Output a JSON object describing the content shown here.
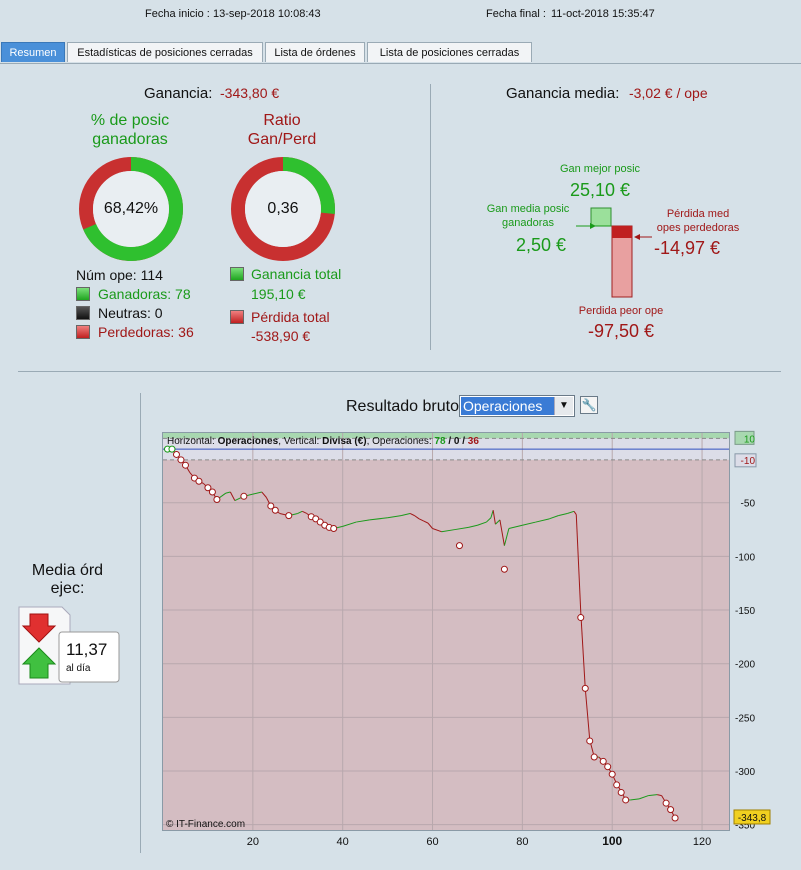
{
  "header": {
    "start_label": "Fecha inicio :",
    "start_value": "13-sep-2018 10:08:43",
    "end_label": "Fecha final :",
    "end_value": "11-oct-2018 15:35:47"
  },
  "tabs": [
    "Resumen",
    "Estadísticas de posiciones cerradas",
    "Lista de órdenes",
    "Lista de posiciones cerradas"
  ],
  "summary": {
    "gain_label": "Ganancia:",
    "gain_value": "-343,80 €",
    "win_pct_title_1": "% de posic",
    "win_pct_title_2": "ganadoras",
    "win_pct_value": "68,42%",
    "win_fraction": 0.6842,
    "ratio_title_1": "Ratio",
    "ratio_title_2": "Gan/Perd",
    "ratio_value": "0,36",
    "ratio_fraction": 0.265,
    "num_ope": "Núm ope: 114",
    "winners": "Ganadoras: 78",
    "neutral": "Neutras: 0",
    "losers": "Perdedoras: 36",
    "total_gain_label": "Ganancia total",
    "total_gain_value": "195,10 €",
    "total_loss_label": "Pérdida total",
    "total_loss_value": "-538,90 €"
  },
  "avg": {
    "label": "Ganancia media:",
    "value": "-3,02 € / ope",
    "best_label": "Gan mejor posic",
    "best_value": "25,10 €",
    "avg_win_label_1": "Gan media posic",
    "avg_win_label_2": "ganadoras",
    "avg_win_value": "2,50 €",
    "avg_loss_label_1": "Pérdida med",
    "avg_loss_label_2": "opes perdedoras",
    "avg_loss_value": "-14,97 €",
    "worst_label": "Perdida peor ope",
    "worst_value": "-97,50 €"
  },
  "orders": {
    "label_1": "Media órd",
    "label_2": "ejec:",
    "value": "11,37",
    "unit": "al día"
  },
  "chart_controls": {
    "title": "Resultado bruto",
    "select_value": "Operaciones"
  },
  "chart_header": {
    "horizontal_label": "Horizontal:",
    "horizontal_value": "Operaciones",
    "vertical_label": ", Vertical:",
    "vertical_value": "Divisa (€)",
    "ops_label": ", Operaciones:",
    "ops_win": "78",
    "ops_sep1": "/",
    "ops_neutral": "0",
    "ops_sep2": "/",
    "ops_loss": "36"
  },
  "chart_data": {
    "type": "line",
    "title": "Resultado bruto",
    "xlabel": "",
    "ylabel": "",
    "xlim": [
      0,
      126
    ],
    "ylim": [
      -355,
      15
    ],
    "x_ticks": [
      "20",
      "40",
      "60",
      "80",
      "100",
      "120"
    ],
    "x_tick_values": [
      20,
      40,
      60,
      80,
      100,
      120
    ],
    "y_ticks": [
      "10",
      "-10",
      "-50",
      "-100",
      "-150",
      "-200",
      "-250",
      "-300",
      "-350"
    ],
    "y_tick_values": [
      10,
      -10,
      -50,
      -100,
      -150,
      -200,
      -250,
      -300,
      -350
    ],
    "grid": true,
    "final_value": "-343,8",
    "copyright": "© IT-Finance.com",
    "series": [
      {
        "values": [
          [
            1,
            0
          ],
          [
            2,
            0
          ],
          [
            3,
            -5
          ],
          [
            4,
            -10
          ],
          [
            5,
            -15
          ],
          [
            6,
            -22
          ],
          [
            7,
            -27
          ],
          [
            8,
            -30
          ],
          [
            9,
            -32
          ],
          [
            10,
            -36
          ],
          [
            11,
            -40
          ],
          [
            12,
            -47
          ],
          [
            13,
            -44
          ],
          [
            14,
            -41
          ],
          [
            15,
            -40
          ],
          [
            16,
            -48
          ],
          [
            18,
            -44
          ],
          [
            20,
            -42
          ],
          [
            22,
            -40
          ],
          [
            23,
            -45
          ],
          [
            24,
            -53
          ],
          [
            25,
            -57
          ],
          [
            26,
            -60
          ],
          [
            28,
            -62
          ],
          [
            30,
            -60
          ],
          [
            31,
            -58
          ],
          [
            32,
            -60
          ],
          [
            33,
            -63
          ],
          [
            34,
            -65
          ],
          [
            35,
            -68
          ],
          [
            36,
            -71
          ],
          [
            37,
            -73
          ],
          [
            38,
            -74
          ],
          [
            40,
            -72
          ],
          [
            43,
            -68
          ],
          [
            46,
            -66
          ],
          [
            50,
            -64
          ],
          [
            53,
            -62
          ],
          [
            55,
            -60
          ],
          [
            56,
            -62
          ],
          [
            57,
            -65
          ],
          [
            58,
            -67
          ],
          [
            59,
            -69
          ],
          [
            60,
            -74
          ],
          [
            62,
            -77
          ],
          [
            65,
            -75
          ],
          [
            68,
            -73
          ],
          [
            70,
            -71
          ],
          [
            72,
            -68
          ],
          [
            73,
            -64
          ],
          [
            73.5,
            -57
          ],
          [
            74,
            -70
          ],
          [
            75,
            -66
          ],
          [
            76,
            -90
          ],
          [
            77,
            -74
          ],
          [
            80,
            -71
          ],
          [
            83,
            -68
          ],
          [
            86,
            -65
          ],
          [
            88,
            -62
          ],
          [
            90,
            -60
          ],
          [
            91.5,
            -58
          ],
          [
            92,
            -61
          ],
          [
            93,
            -152
          ],
          [
            94,
            -223
          ],
          [
            95,
            -271
          ],
          [
            96,
            -287
          ],
          [
            97,
            -287
          ],
          [
            98,
            -291
          ],
          [
            99,
            -296
          ],
          [
            100,
            -303
          ],
          [
            101,
            -312
          ],
          [
            102,
            -319
          ],
          [
            103,
            -327
          ],
          [
            104,
            -327
          ],
          [
            106,
            -326
          ],
          [
            108,
            -323
          ],
          [
            110,
            -322
          ],
          [
            111,
            -323
          ],
          [
            112,
            -330
          ],
          [
            113,
            -336
          ],
          [
            114,
            -343.8
          ]
        ],
        "win_points": [
          1,
          2
        ],
        "loss_points": [
          [
            3,
            -5
          ],
          [
            4,
            -10
          ],
          [
            5,
            -15
          ],
          [
            7,
            -27
          ],
          [
            8,
            -30
          ],
          [
            10,
            -36
          ],
          [
            11,
            -40
          ],
          [
            12,
            -47
          ],
          [
            18,
            -44
          ],
          [
            24,
            -53
          ],
          [
            25,
            -57
          ],
          [
            28,
            -62
          ],
          [
            33,
            -63
          ],
          [
            34,
            -65
          ],
          [
            35,
            -68
          ],
          [
            36,
            -71
          ],
          [
            37,
            -73
          ],
          [
            38,
            -74
          ],
          [
            66,
            -90
          ],
          [
            76,
            -112
          ],
          [
            93,
            -157
          ],
          [
            94,
            -223
          ],
          [
            95,
            -272
          ],
          [
            96,
            -287
          ],
          [
            98,
            -291
          ],
          [
            99,
            -296
          ],
          [
            100,
            -303
          ],
          [
            101,
            -313
          ],
          [
            102,
            -320
          ],
          [
            103,
            -327
          ],
          [
            112,
            -330
          ],
          [
            113,
            -336
          ],
          [
            114,
            -343.8
          ]
        ]
      }
    ]
  },
  "colors": {
    "win": "#1a9a1a",
    "loss": "#a01818",
    "tab_active": "#4a90d9"
  }
}
